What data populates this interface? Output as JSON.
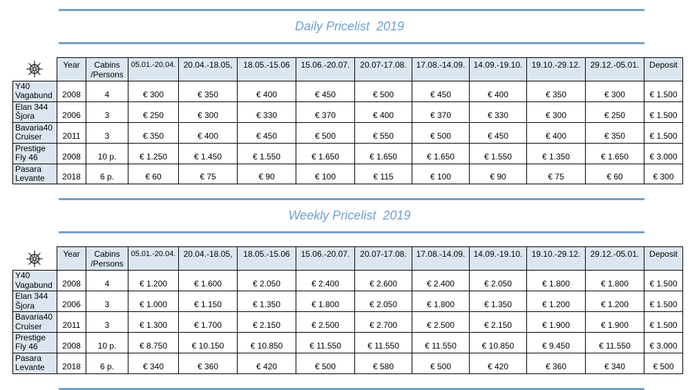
{
  "page": {
    "accent_color": "#6fa0d2",
    "rule_color": "#73a0c9",
    "header_cell_color": "#dce6f1"
  },
  "daily": {
    "title": "Daily Pricelist  2019"
  },
  "weekly": {
    "title": "Weekly Pricelist  2019"
  },
  "table": {
    "corner_icon": "ship-wheel",
    "col_year": "Year",
    "col_cabins": "Cabins\n/Persons",
    "date_columns": [
      "05.01.-20.04.",
      "20.04.-18.05,",
      "18.05.-15.06",
      "15.06.-20.07.",
      "20.07-17.08.",
      "17.08.-14.09.",
      "14.09.-19.10.",
      "19.10.-29.12.",
      "29.12.-05.01."
    ],
    "col_deposit": "Deposit"
  },
  "daily_rows": [
    {
      "name": "Y40\nVagabund",
      "year": "2008",
      "cabins": "4",
      "prices": [
        "€ 300",
        "€ 350",
        "€ 400",
        "€ 450",
        "€ 500",
        "€ 450",
        "€ 400",
        "€ 350",
        "€ 300"
      ],
      "deposit": "€ 1.500"
    },
    {
      "name": "Elan 344\nŠjora",
      "year": "2006",
      "cabins": "3",
      "prices": [
        "€ 250",
        "€ 300",
        "€ 330",
        "€ 370",
        "€ 400",
        "€ 370",
        "€ 330",
        "€ 300",
        "€ 250"
      ],
      "deposit": "€ 1.500"
    },
    {
      "name": "Bavaria40\nCruiser",
      "year": "2011",
      "cabins": "3",
      "prices": [
        "€ 350",
        "€ 400",
        "€ 450",
        "€ 500",
        "€ 550",
        "€ 500",
        "€ 450",
        "€ 400",
        "€ 350"
      ],
      "deposit": "€ 1.500"
    },
    {
      "name": "Prestige\nFly 46",
      "year": "2008",
      "cabins": "10 p.",
      "prices": [
        "€ 1.250",
        "€ 1.450",
        "€ 1.550",
        "€ 1.650",
        "€ 1.650",
        "€ 1.650",
        "€ 1.550",
        "€ 1.350",
        "€ 1.650"
      ],
      "deposit": "€ 3.000"
    },
    {
      "name": "Pasara\nLevante",
      "year": "2018",
      "cabins": "6 p.",
      "prices": [
        "€ 60",
        "€ 75",
        "€ 90",
        "€ 100",
        "€ 115",
        "€ 100",
        "€ 90",
        "€ 75",
        "€ 60"
      ],
      "deposit": "€ 300"
    }
  ],
  "weekly_rows": [
    {
      "name": "Y40\nVagabund",
      "year": "2008",
      "cabins": "4",
      "prices": [
        "€ 1.200",
        "€ 1.600",
        "€ 2.050",
        "€ 2.400",
        "€ 2.600",
        "€ 2.400",
        "€ 2.050",
        "€ 1.800",
        "€ 1.800"
      ],
      "deposit": "€ 1.500"
    },
    {
      "name": "Elan 344\nŠjora",
      "year": "2006",
      "cabins": "3",
      "prices": [
        "€ 1.000",
        "€ 1.150",
        "€ 1.350",
        "€ 1.800",
        "€ 2.050",
        "€ 1.800",
        "€ 1.350",
        "€ 1.200",
        "€ 1.200"
      ],
      "deposit": "€ 1.500"
    },
    {
      "name": "Bavaria40\nCruiser",
      "year": "2011",
      "cabins": "3",
      "prices": [
        "€ 1.300",
        "€ 1.700",
        "€ 2.150",
        "€ 2.500",
        "€ 2.700",
        "€ 2.500",
        "€ 2.150",
        "€ 1.900",
        "€ 1.900"
      ],
      "deposit": "€ 1.500"
    },
    {
      "name": "Prestige\nFly 46",
      "year": "2008",
      "cabins": "10 p.",
      "prices": [
        "€ 8.750",
        "€ 10.150",
        "€ 10.850",
        "€ 11.550",
        "€ 11.550",
        "€ 11.550",
        "€ 10.850",
        "€ 9.450",
        "€ 11.550"
      ],
      "deposit": "€ 3.000"
    },
    {
      "name": "Pasara\nLevante",
      "year": "2018",
      "cabins": "6 p.",
      "prices": [
        "€ 340",
        "€ 360",
        "€ 420",
        "€ 500",
        "€ 580",
        "€ 500",
        "€ 420",
        "€ 360",
        "€ 340"
      ],
      "deposit": "€ 500"
    }
  ]
}
